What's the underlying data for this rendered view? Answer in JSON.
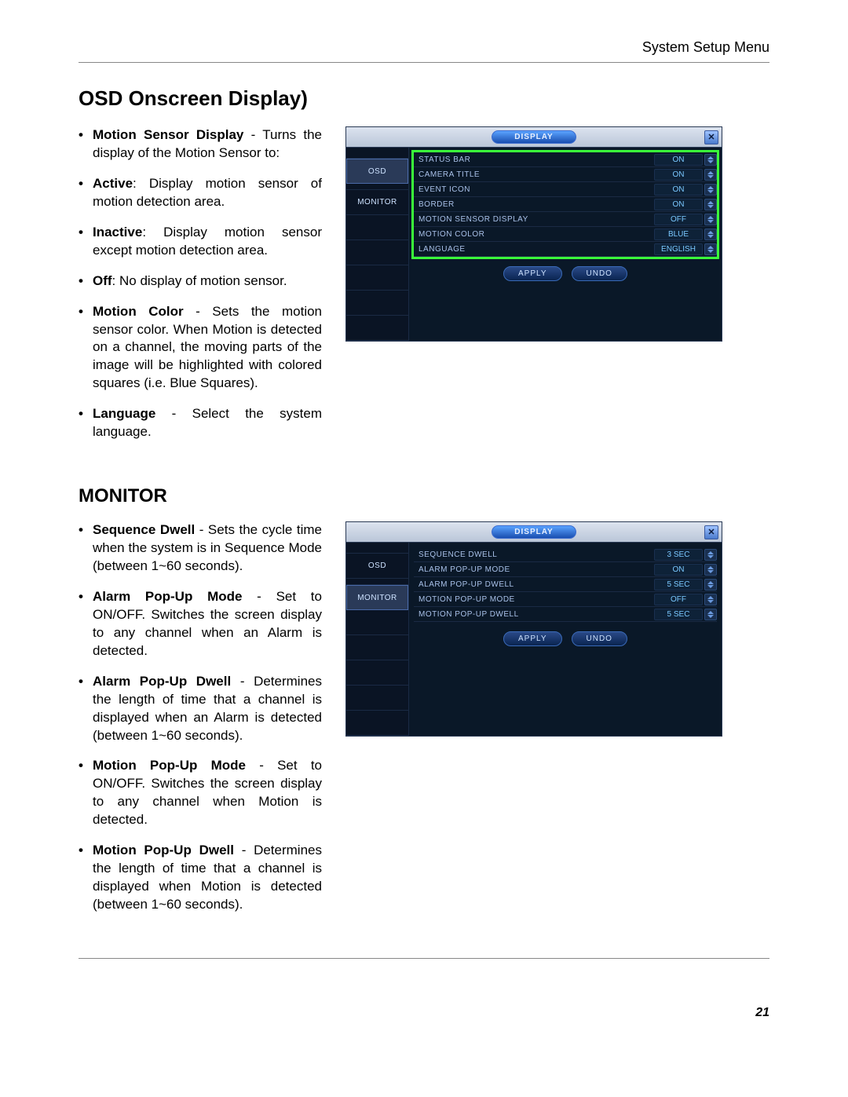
{
  "header": {
    "breadcrumb": "System Setup Menu"
  },
  "page_number": "21",
  "osd": {
    "heading": "OSD Onscreen Display)",
    "bullets": {
      "motion_sensor_label": "Motion Sensor Display",
      "motion_sensor_text": " - Turns the display of the Motion Sensor to:",
      "active_label": "Active",
      "active_text": ": Display motion sensor of motion detection area.",
      "inactive_label": "Inactive",
      "inactive_text": ": Display motion sensor except motion detection area.",
      "off_label": "Off",
      "off_text": ": No display of motion sensor.",
      "motion_color_label": "Motion Color",
      "motion_color_text": " - Sets the motion sensor color. When Motion is detected on a channel, the moving parts of the image will be highlighted with colored squares (i.e. Blue Squares).",
      "language_label": "Language",
      "language_text": " - Select the system language."
    },
    "panel": {
      "title": "DISPLAY",
      "side": {
        "osd": "OSD",
        "monitor": "MONITOR"
      },
      "apply": "APPLY",
      "undo": "UNDO",
      "rows": [
        {
          "label": "STATUS BAR",
          "value": "ON"
        },
        {
          "label": "CAMERA TITLE",
          "value": "ON"
        },
        {
          "label": "EVENT ICON",
          "value": "ON"
        },
        {
          "label": "BORDER",
          "value": "ON"
        },
        {
          "label": "MOTION SENSOR DISPLAY",
          "value": "OFF"
        },
        {
          "label": "MOTION COLOR",
          "value": "BLUE"
        },
        {
          "label": "LANGUAGE",
          "value": "ENGLISH"
        }
      ]
    }
  },
  "monitor": {
    "heading": "Monitor",
    "bullets": {
      "seq_dwell_label": "Sequence Dwell",
      "seq_dwell_text": " - Sets the cycle time when the system is in Sequence Mode (between 1~60 seconds).",
      "alarm_mode_label": "Alarm Pop-Up Mode",
      "alarm_mode_text": " - Set to ON/OFF. Switches the screen display to any channel when an Alarm is detected.",
      "alarm_dwell_label": "Alarm Pop-Up Dwell",
      "alarm_dwell_text": " - Determines the length of time that a channel is displayed when an Alarm is detected (between 1~60 seconds).",
      "motion_mode_label": "Motion Pop-Up Mode",
      "motion_mode_text": " - Set to ON/OFF. Switches the screen display to any channel when Motion is detected.",
      "motion_dwell_label": "Motion Pop-Up Dwell",
      "motion_dwell_text": " - Determines the length of time that a channel is displayed when Motion is detected (between 1~60 seconds)."
    },
    "panel": {
      "title": "DISPLAY",
      "side": {
        "osd": "OSD",
        "monitor": "MONITOR"
      },
      "apply": "APPLY",
      "undo": "UNDO",
      "rows": [
        {
          "label": "SEQUENCE DWELL",
          "value": "3 SEC"
        },
        {
          "label": "ALARM POP-UP MODE",
          "value": "ON"
        },
        {
          "label": "ALARM POP-UP DWELL",
          "value": "5 SEC"
        },
        {
          "label": "MOTION POP-UP MODE",
          "value": "OFF"
        },
        {
          "label": "MOTION POP-UP DWELL",
          "value": "5 SEC"
        }
      ]
    }
  }
}
